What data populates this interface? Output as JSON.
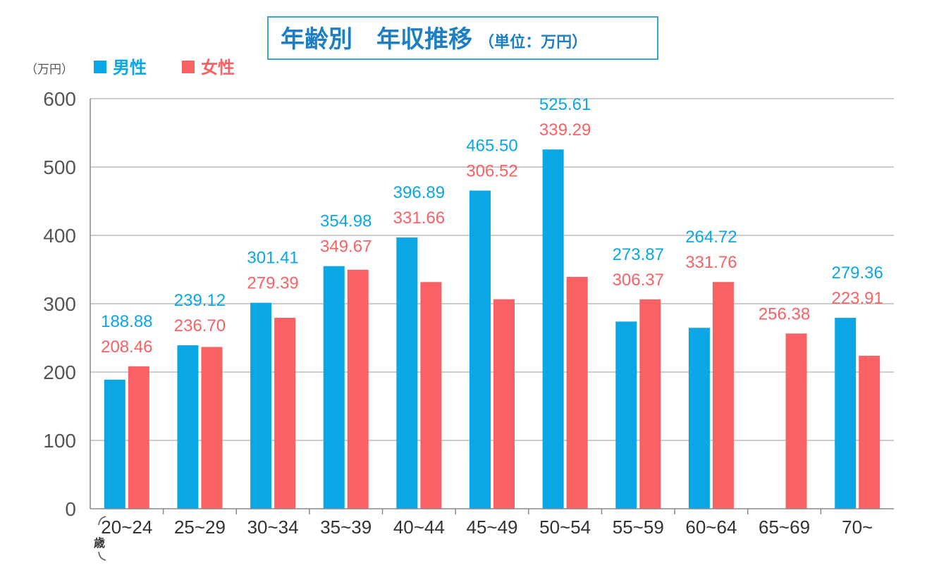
{
  "colors": {
    "male": "#0aa6e6",
    "female": "#fa6165",
    "title": "#1c7fc4",
    "title_border": "#3aa3dc"
  },
  "chart_data": {
    "type": "bar",
    "title": "年齢別　年収推移",
    "title_unit": "（単位：万円）",
    "ylabel": "（万円）",
    "xunit": "歳",
    "ylim": [
      0,
      600
    ],
    "yticks": [
      "0",
      "100",
      "200",
      "300",
      "400",
      "500",
      "600"
    ],
    "grid": true,
    "legend_position": "top-left",
    "categories": [
      "20~24",
      "25~29",
      "30~34",
      "35~39",
      "40~44",
      "45~49",
      "50~54",
      "55~59",
      "60~64",
      "65~69",
      "70~"
    ],
    "series": [
      {
        "name": "男性",
        "values": [
          188.88,
          239.12,
          301.41,
          354.98,
          396.89,
          465.5,
          525.61,
          273.87,
          264.72,
          null,
          279.36
        ],
        "labels": [
          "188.88",
          "239.12",
          "301.41",
          "354.98",
          "396.89",
          "465.50",
          "525.61",
          "273.87",
          "264.72",
          "",
          "279.36"
        ]
      },
      {
        "name": "女性",
        "values": [
          208.46,
          236.7,
          279.39,
          349.67,
          331.66,
          306.52,
          339.29,
          306.37,
          331.76,
          256.38,
          223.91
        ],
        "labels": [
          "208.46",
          "236.70",
          "279.39",
          "349.67",
          "331.66",
          "306.52",
          "339.29",
          "306.37",
          "331.76",
          "256.38",
          "223.91"
        ]
      }
    ]
  }
}
